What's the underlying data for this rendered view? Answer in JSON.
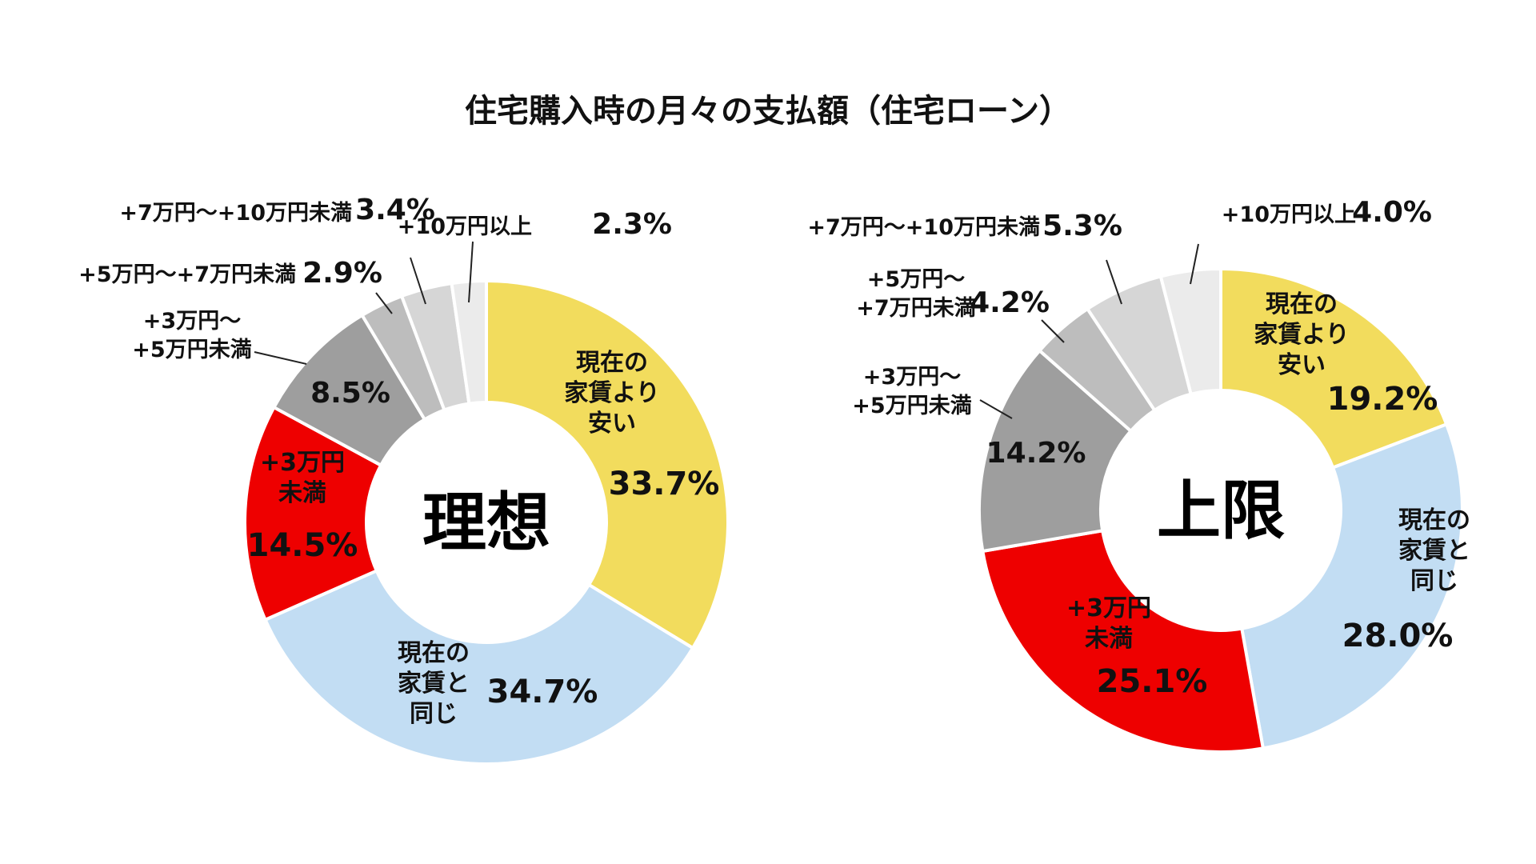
{
  "title": "住宅購入時の月々の支払額（住宅ローン）",
  "chart_data": [
    {
      "type": "pie",
      "center_label": "理想",
      "slices": [
        {
          "label": "現在の家賃より安い",
          "label_lines": [
            "現在の",
            "家賃より",
            "安い"
          ],
          "value": 33.7,
          "value_text": "33.7%",
          "color": "#F2DC5D",
          "text_color": "#111111",
          "placement": "inside"
        },
        {
          "label": "現在の家賃と同じ",
          "label_lines": [
            "現在の",
            "家賃と",
            "同じ"
          ],
          "value": 34.7,
          "value_text": "34.7%",
          "color": "#C2DDF3",
          "text_color": "#111111",
          "placement": "inside"
        },
        {
          "label": "+3万円未満",
          "label_lines": [
            "+3万円",
            "未満"
          ],
          "value": 14.5,
          "value_text": "14.5%",
          "color": "#EE0000",
          "text_color": "#FFFFFF",
          "placement": "inside"
        },
        {
          "label": "+3万円～+5万円未満",
          "label_lines": [
            "+3万円～",
            "+5万円未満"
          ],
          "value": 8.5,
          "value_text": "8.5%",
          "color": "#9E9E9E",
          "text_color": "#111111",
          "placement": "outside"
        },
        {
          "label": "+5万円～+7万円未満",
          "label_lines": [
            "+5万円～+7万円未満"
          ],
          "value": 2.9,
          "value_text": "2.9%",
          "color": "#BDBDBD",
          "text_color": "#111111",
          "placement": "outside"
        },
        {
          "label": "+7万円～+10万円未満",
          "label_lines": [
            "+7万円～+10万円未満"
          ],
          "value": 3.4,
          "value_text": "3.4%",
          "color": "#D6D6D6",
          "text_color": "#111111",
          "placement": "outside"
        },
        {
          "label": "+10万円以上",
          "label_lines": [
            "+10万円以上"
          ],
          "value": 2.3,
          "value_text": "2.3%",
          "color": "#EBEBEB",
          "text_color": "#111111",
          "placement": "outside"
        }
      ]
    },
    {
      "type": "pie",
      "center_label": "上限",
      "slices": [
        {
          "label": "現在の家賃より安い",
          "label_lines": [
            "現在の",
            "家賃より",
            "安い"
          ],
          "value": 19.2,
          "value_text": "19.2%",
          "color": "#F2DC5D",
          "text_color": "#111111",
          "placement": "inside"
        },
        {
          "label": "現在の家賃と同じ",
          "label_lines": [
            "現在の",
            "家賃と",
            "同じ"
          ],
          "value": 28.0,
          "value_text": "28.0%",
          "color": "#C2DDF3",
          "text_color": "#111111",
          "placement": "inside"
        },
        {
          "label": "+3万円未満",
          "label_lines": [
            "+3万円",
            "未満"
          ],
          "value": 25.1,
          "value_text": "25.1%",
          "color": "#EE0000",
          "text_color": "#FFFFFF",
          "placement": "inside"
        },
        {
          "label": "+3万円～+5万円未満",
          "label_lines": [
            "+3万円～",
            "+5万円未満"
          ],
          "value": 14.2,
          "value_text": "14.2%",
          "color": "#9E9E9E",
          "text_color": "#111111",
          "placement": "outside"
        },
        {
          "label": "+5万円～+7万円未満",
          "label_lines": [
            "+5万円～",
            "+7万円未満"
          ],
          "value": 4.2,
          "value_text": "4.2%",
          "color": "#BDBDBD",
          "text_color": "#111111",
          "placement": "outside"
        },
        {
          "label": "+7万円～+10万円未満",
          "label_lines": [
            "+7万円～+10万円未満"
          ],
          "value": 5.3,
          "value_text": "5.3%",
          "color": "#D6D6D6",
          "text_color": "#111111",
          "placement": "outside"
        },
        {
          "label": "+10万円以上",
          "label_lines": [
            "+10万円以上"
          ],
          "value": 4.0,
          "value_text": "4.0%",
          "color": "#EBEBEB",
          "text_color": "#111111",
          "placement": "outside"
        }
      ]
    }
  ]
}
